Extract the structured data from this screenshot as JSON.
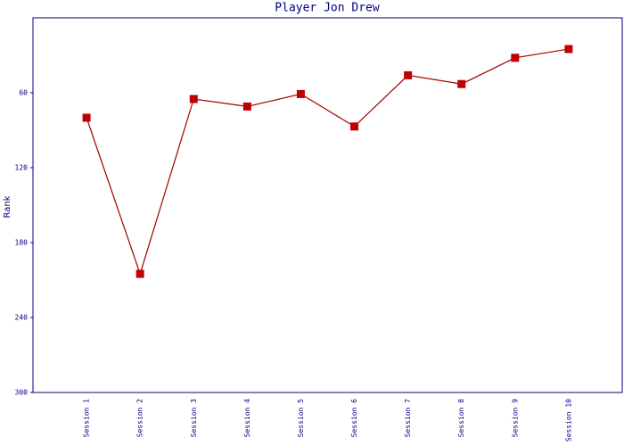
{
  "chart_data": {
    "type": "line",
    "title": "Player Jon Drew",
    "y_label": "Rank",
    "categories": [
      "Session 1",
      "Session 2",
      "Session 3",
      "Session 4",
      "Session 5",
      "Session 6",
      "Session 7",
      "Session 8",
      "Session 9",
      "Session 10"
    ],
    "series": [
      {
        "name": "Rank",
        "color": "#c00000",
        "line_color": "#a00000",
        "values": [
          80,
          205,
          65,
          71,
          61,
          87,
          46,
          53,
          32,
          25
        ]
      }
    ],
    "ylim": [
      300,
      0
    ],
    "yticks": [
      60,
      120,
      180,
      240,
      300
    ],
    "grid": false
  }
}
